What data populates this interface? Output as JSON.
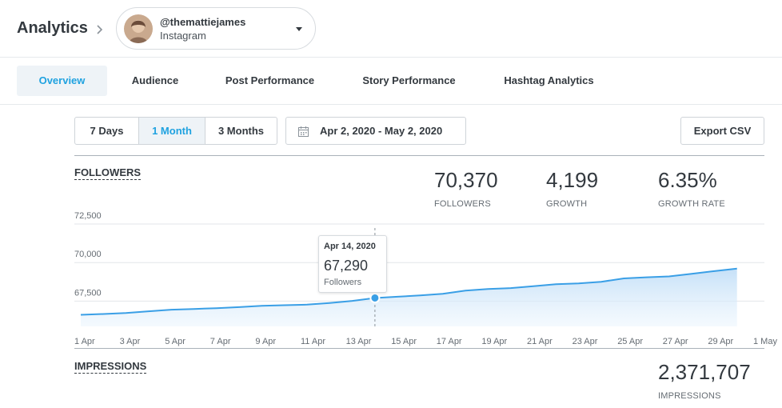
{
  "header": {
    "title": "Analytics",
    "account": {
      "handle": "@themattiejames",
      "network": "Instagram"
    }
  },
  "tabs": [
    {
      "label": "Overview",
      "active": true
    },
    {
      "label": "Audience"
    },
    {
      "label": "Post Performance"
    },
    {
      "label": "Story Performance"
    },
    {
      "label": "Hashtag Analytics"
    }
  ],
  "controls": {
    "ranges": [
      {
        "label": "7 Days"
      },
      {
        "label": "1 Month",
        "active": true
      },
      {
        "label": "3 Months"
      }
    ],
    "date_range": "Apr 2, 2020 - May 2, 2020",
    "export_label": "Export CSV"
  },
  "followers": {
    "title": "FOLLOWERS",
    "stats": [
      {
        "value": "70,370",
        "label": "FOLLOWERS"
      },
      {
        "value": "4,199",
        "label": "GROWTH"
      },
      {
        "value": "6.35%",
        "label": "GROWTH RATE"
      }
    ],
    "tooltip": {
      "date": "Apr 14, 2020",
      "value": "67,290",
      "label": "Followers"
    }
  },
  "impressions": {
    "title": "IMPRESSIONS",
    "value": "2,371,707",
    "label": "IMPRESSIONS"
  },
  "colors": {
    "accent": "#1fa2e0",
    "line": "#3a9fe6",
    "area": "#cfe6fa"
  },
  "chart_data": {
    "type": "area",
    "series": [
      {
        "x": [
          "1 Apr",
          "2 Apr",
          "3 Apr",
          "4 Apr",
          "5 Apr",
          "6 Apr",
          "7 Apr",
          "8 Apr",
          "9 Apr",
          "10 Apr",
          "11 Apr",
          "12 Apr",
          "13 Apr",
          "14 Apr",
          "15 Apr",
          "16 Apr",
          "17 Apr",
          "18 Apr",
          "19 Apr",
          "20 Apr",
          "21 Apr",
          "22 Apr",
          "23 Apr",
          "24 Apr",
          "25 Apr",
          "26 Apr",
          "27 Apr",
          "28 Apr",
          "29 Apr",
          "30 Apr"
        ],
        "values": [
          66200,
          66250,
          66320,
          66430,
          66530,
          66580,
          66630,
          66700,
          66780,
          66820,
          66860,
          66970,
          67100,
          67290,
          67370,
          67460,
          67560,
          67770,
          67870,
          67930,
          68050,
          68180,
          68240,
          68340,
          68560,
          68630,
          68690,
          68860,
          69030,
          69190
        ]
      }
    ],
    "x_ticks": [
      "1 Apr",
      "3 Apr",
      "5 Apr",
      "7 Apr",
      "9 Apr",
      "11 Apr",
      "13 Apr",
      "15 Apr",
      "17 Apr",
      "19 Apr",
      "21 Apr",
      "23 Apr",
      "25 Apr",
      "27 Apr",
      "29 Apr",
      "1 May"
    ],
    "y_ticks": [
      "72,500",
      "70,000",
      "67,500"
    ],
    "ylim": [
      65500,
      72500
    ],
    "highlight_index": 13,
    "grid": true
  }
}
